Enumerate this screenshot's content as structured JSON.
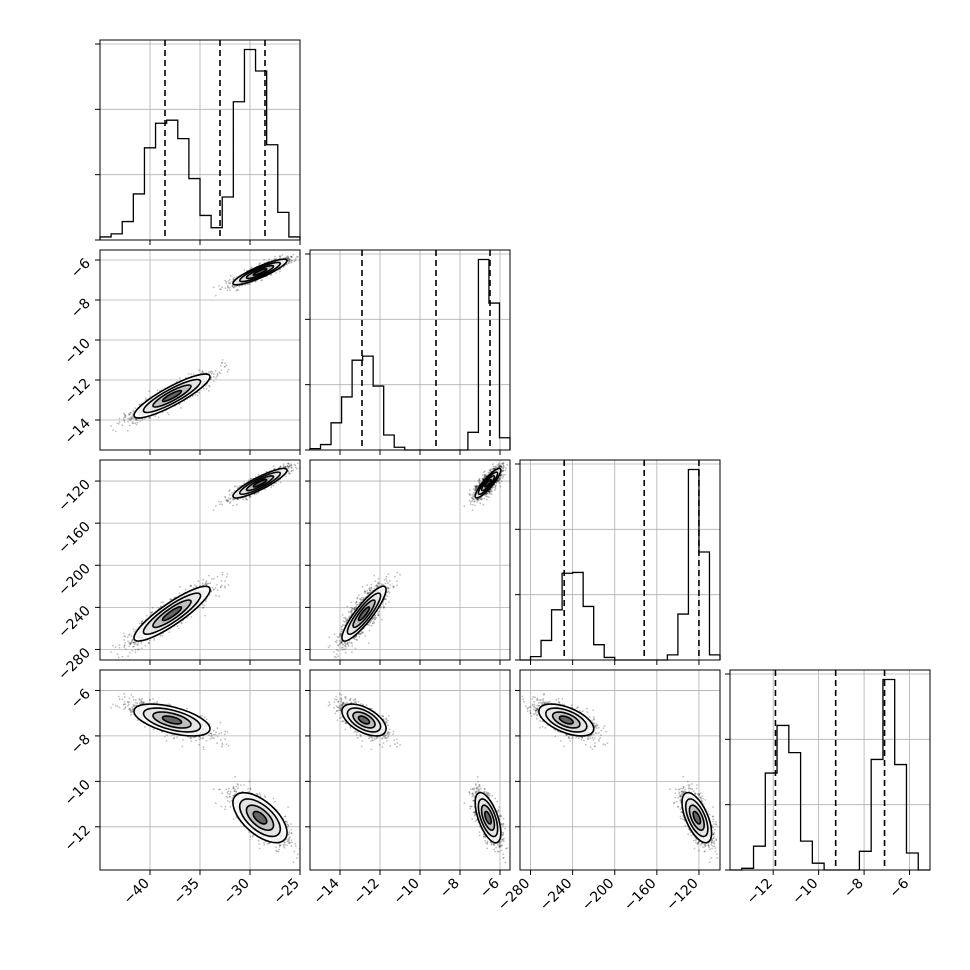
{
  "chart_data": {
    "type": "corner",
    "grid": true,
    "parameters": [
      {
        "range": [
          -45,
          -25
        ],
        "ticks": [
          -40,
          -35,
          -30,
          -25
        ],
        "quantiles": [
          -38.5,
          -33.0,
          -28.5
        ]
      },
      {
        "range": [
          -15.5,
          -5.5
        ],
        "ticks": [
          -14,
          -12,
          -10,
          -8,
          -6
        ],
        "quantiles": [
          -12.9,
          -9.2,
          -6.5
        ]
      },
      {
        "range": [
          -290,
          -100
        ],
        "ticks": [
          -280,
          -240,
          -200,
          -160,
          -120
        ],
        "quantiles": [
          -248,
          -172,
          -120
        ]
      },
      {
        "range": [
          -13.9,
          -5.1
        ],
        "ticks": [
          -12,
          -10,
          -8,
          -6
        ],
        "quantiles": [
          -11.9,
          -9.25,
          -7.1
        ]
      }
    ],
    "histograms": [
      {
        "counts": [
          1,
          2,
          6,
          15,
          30,
          38,
          39,
          33,
          20,
          8,
          4,
          14,
          45,
          62,
          55,
          31,
          9,
          1
        ]
      },
      {
        "counts": [
          1,
          4,
          20,
          39,
          66,
          69,
          47,
          11,
          2,
          0,
          0,
          0,
          0,
          0,
          0,
          13,
          140,
          108,
          9
        ]
      },
      {
        "counts": [
          0,
          4,
          23,
          59,
          102,
          103,
          63,
          18,
          3,
          0,
          0,
          0,
          0,
          0,
          6,
          54,
          224,
          127,
          6
        ]
      },
      {
        "counts": [
          0,
          1,
          14,
          57,
          85,
          69,
          17,
          4,
          0,
          0,
          0,
          11,
          65,
          112,
          62,
          10,
          0
        ]
      }
    ],
    "tick_label_format": "minus"
  }
}
